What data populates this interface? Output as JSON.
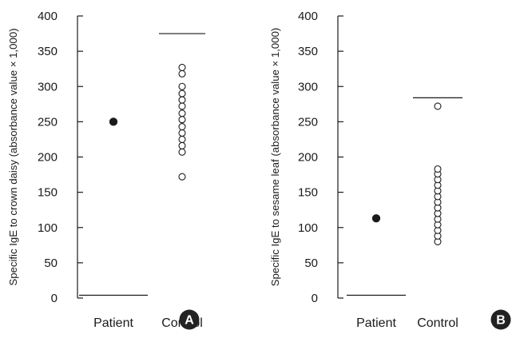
{
  "colors": {
    "ink": "#1a1a1a",
    "badge": "#222222"
  },
  "chart_data": [
    {
      "type": "scatter",
      "panel": "A",
      "ylabel": "Specific IgE to crown daisy (absorbance value × 1,000)",
      "xlabel": "",
      "categories": [
        "Patient",
        "Control"
      ],
      "ylim": [
        0,
        400
      ],
      "yticks": [
        0,
        50,
        100,
        150,
        200,
        250,
        300,
        350,
        400
      ],
      "grid": false,
      "series": [
        {
          "category": "Patient",
          "marker": "filled",
          "values": [
            250
          ]
        },
        {
          "category": "Control",
          "marker": "open",
          "values": [
            172,
            207,
            216,
            225,
            234,
            243,
            253,
            262,
            272,
            281,
            290,
            300,
            318,
            327
          ]
        }
      ],
      "reference_lines": [
        {
          "category": "Control",
          "value": 375
        },
        {
          "category": "Patient",
          "value": 4
        }
      ]
    },
    {
      "type": "scatter",
      "panel": "B",
      "ylabel": "Specific IgE to sesame leaf (absorbance value × 1,000)",
      "xlabel": "",
      "categories": [
        "Patient",
        "Control"
      ],
      "ylim": [
        0,
        400
      ],
      "yticks": [
        0,
        50,
        100,
        150,
        200,
        250,
        300,
        350,
        400
      ],
      "grid": false,
      "series": [
        {
          "category": "Patient",
          "marker": "filled",
          "values": [
            113
          ]
        },
        {
          "category": "Control",
          "marker": "open",
          "values": [
            80,
            88,
            96,
            104,
            112,
            120,
            128,
            136,
            144,
            152,
            160,
            168,
            176,
            183,
            272
          ]
        }
      ],
      "reference_lines": [
        {
          "category": "Control",
          "value": 284
        },
        {
          "category": "Patient",
          "value": 4
        }
      ]
    }
  ]
}
